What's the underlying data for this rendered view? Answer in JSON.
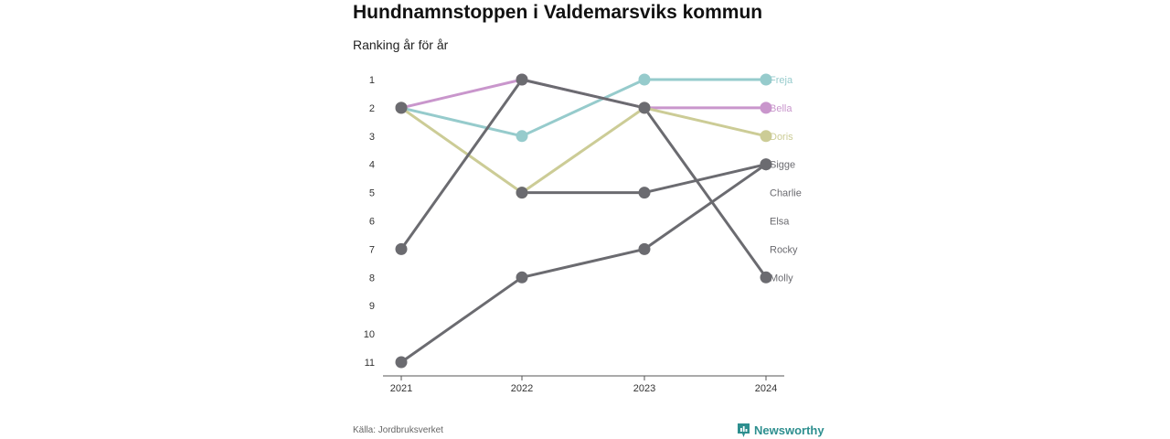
{
  "title": "Hundnamnstoppen i Valdemarsviks kommun",
  "subtitle": "Ranking år för år",
  "source": "Källa: Jordbruksverket",
  "brand": "Newsworthy",
  "colors": {
    "freja": "#96cbcc",
    "bella": "#c996cc",
    "doris": "#cccc96",
    "dark": "#6b6b70",
    "axis": "#555555"
  },
  "chart_data": {
    "type": "line",
    "x": [
      "2021",
      "2022",
      "2023",
      "2024"
    ],
    "y_ticks": [
      1,
      2,
      3,
      4,
      5,
      6,
      7,
      8,
      9,
      10,
      11
    ],
    "ylim": [
      1,
      11
    ],
    "y_inverted": true,
    "end_labels": [
      {
        "name": "Freja",
        "rank": 1,
        "color": "#96cbcc"
      },
      {
        "name": "Bella",
        "rank": 2,
        "color": "#c996cc"
      },
      {
        "name": "Doris",
        "rank": 3,
        "color": "#cccc96"
      },
      {
        "name": "Sigge",
        "rank": 4,
        "color": "#6b6b70"
      },
      {
        "name": "Charlie",
        "rank": 5,
        "color": "#6b6b70"
      },
      {
        "name": "Elsa",
        "rank": 6,
        "color": "#6b6b70"
      },
      {
        "name": "Rocky",
        "rank": 7,
        "color": "#6b6b70"
      },
      {
        "name": "Molly",
        "rank": 8,
        "color": "#6b6b70"
      }
    ],
    "series": [
      {
        "name": "Freja",
        "color": "#96cbcc",
        "values": [
          2,
          3,
          1,
          1
        ]
      },
      {
        "name": "Bella",
        "color": "#c996cc",
        "values": [
          2,
          1,
          2,
          2
        ]
      },
      {
        "name": "Doris",
        "color": "#cccc96",
        "values": [
          2,
          5,
          2,
          3
        ]
      },
      {
        "name": "Sigge",
        "color": "#6b6b70",
        "values": [
          11,
          8,
          7,
          4
        ]
      },
      {
        "name": "Charlie",
        "color": "#6b6b70",
        "values": [
          null,
          5,
          5,
          4
        ]
      },
      {
        "name": "Molly",
        "color": "#6b6b70",
        "values": [
          7,
          1,
          2,
          8
        ]
      },
      {
        "name": "Elsa",
        "color": "#6b6b70",
        "values": [
          2,
          null,
          null,
          null
        ]
      }
    ],
    "grid": false
  }
}
